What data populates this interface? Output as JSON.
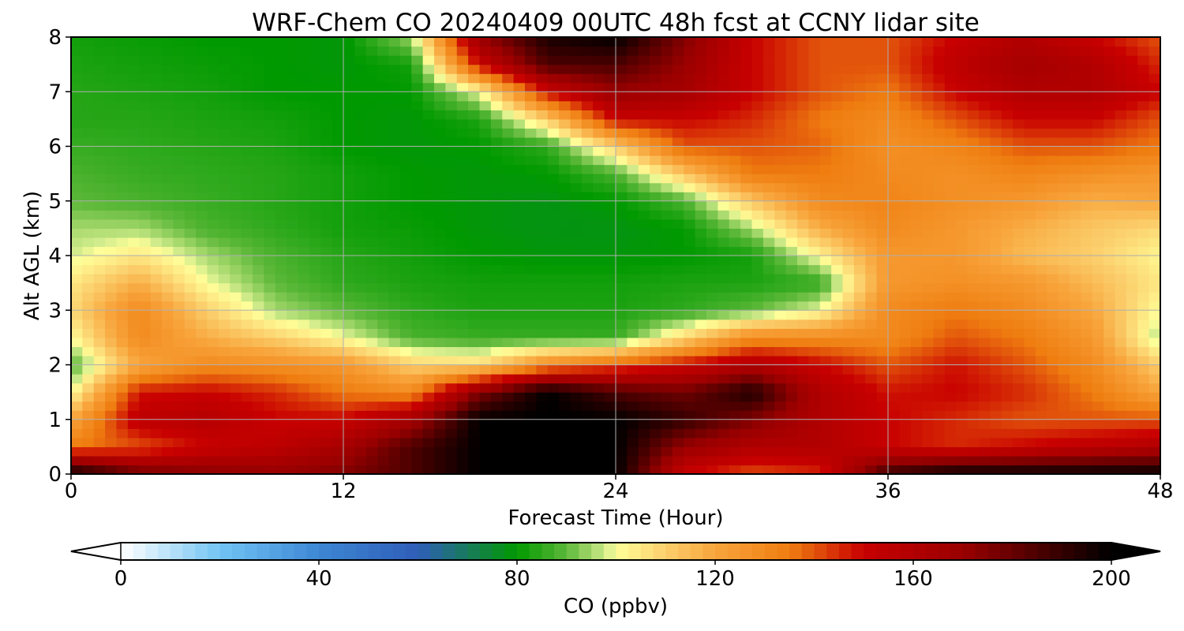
{
  "chart_data": {
    "type": "heatmap",
    "title": "WRF-Chem CO  20240409 00UTC 48h fcst at CCNY lidar site",
    "xlabel": "Forecast Time (Hour)",
    "ylabel": "Alt AGL (km)",
    "xlim": [
      0,
      48
    ],
    "ylim": [
      0,
      8
    ],
    "xticks": [
      0,
      12,
      24,
      36,
      48
    ],
    "yticks": [
      0,
      1,
      2,
      3,
      4,
      5,
      6,
      7,
      8
    ],
    "grid": true,
    "x": [
      0,
      3,
      6,
      9,
      12,
      15,
      18,
      21,
      24,
      27,
      30,
      33,
      36,
      39,
      42,
      45,
      48
    ],
    "y": [
      0,
      0.5,
      1,
      1.5,
      2,
      2.5,
      3,
      3.5,
      4,
      4.5,
      5,
      5.5,
      6,
      6.5,
      7,
      7.5,
      8
    ],
    "z": [
      [
        200,
        180,
        175,
        172,
        175,
        185,
        200,
        200,
        200,
        150,
        140,
        145,
        190,
        200,
        200,
        200,
        200
      ],
      [
        135,
        140,
        150,
        155,
        165,
        185,
        200,
        200,
        200,
        170,
        160,
        160,
        150,
        145,
        150,
        155,
        160
      ],
      [
        120,
        155,
        158,
        150,
        150,
        165,
        200,
        200,
        200,
        190,
        175,
        160,
        150,
        145,
        140,
        140,
        140
      ],
      [
        100,
        148,
        150,
        145,
        135,
        130,
        175,
        200,
        185,
        178,
        195,
        160,
        148,
        150,
        145,
        135,
        120
      ],
      [
        88,
        120,
        130,
        128,
        125,
        110,
        108,
        130,
        140,
        150,
        160,
        150,
        140,
        148,
        140,
        130,
        110
      ],
      [
        100,
        130,
        118,
        110,
        100,
        88,
        86,
        86,
        86,
        108,
        130,
        130,
        130,
        140,
        135,
        125,
        95
      ],
      [
        108,
        130,
        110,
        95,
        90,
        85,
        83,
        83,
        83,
        85,
        90,
        100,
        130,
        135,
        130,
        120,
        100
      ],
      [
        105,
        118,
        100,
        90,
        85,
        83,
        82,
        82,
        82,
        83,
        83,
        85,
        125,
        128,
        125,
        115,
        105
      ],
      [
        98,
        105,
        95,
        88,
        84,
        82,
        80,
        79,
        79,
        80,
        82,
        102,
        125,
        125,
        115,
        110,
        102
      ],
      [
        95,
        95,
        88,
        85,
        82,
        81,
        79,
        78,
        78,
        80,
        95,
        118,
        130,
        125,
        118,
        112,
        108
      ],
      [
        90,
        88,
        86,
        84,
        82,
        80,
        79,
        78,
        80,
        88,
        112,
        130,
        132,
        128,
        125,
        118,
        120
      ],
      [
        88,
        86,
        85,
        84,
        82,
        80,
        79,
        80,
        88,
        112,
        135,
        135,
        130,
        128,
        132,
        128,
        125
      ],
      [
        86,
        85,
        84,
        83,
        80,
        79,
        80,
        85,
        110,
        140,
        140,
        138,
        128,
        132,
        140,
        140,
        135
      ],
      [
        84,
        84,
        83,
        82,
        80,
        79,
        83,
        110,
        150,
        150,
        145,
        135,
        130,
        140,
        150,
        150,
        140
      ],
      [
        84,
        83,
        82,
        80,
        80,
        80,
        100,
        150,
        170,
        165,
        150,
        140,
        135,
        150,
        160,
        160,
        150
      ],
      [
        83,
        82,
        81,
        80,
        79,
        82,
        150,
        185,
        185,
        170,
        150,
        140,
        140,
        155,
        165,
        160,
        145
      ],
      [
        82,
        81,
        80,
        80,
        79,
        95,
        170,
        195,
        200,
        175,
        150,
        140,
        140,
        150,
        160,
        150,
        140
      ]
    ],
    "colorbar": {
      "label": "CO  (ppbv)",
      "ticks": [
        0,
        40,
        80,
        120,
        160,
        200
      ],
      "min": 0,
      "max": 200,
      "extend": "both",
      "colors": {
        "0": "#ffffff",
        "20": "#72c4f4",
        "40": "#3d87d4",
        "60": "#2f5db8",
        "80": "#009900",
        "90": "#5db839",
        "98": "#d2ec8c",
        "100": "#ffff99",
        "110": "#fbcf6c",
        "120": "#f8a53c",
        "135": "#ef7d10",
        "150": "#c80000",
        "170": "#9a0000",
        "185": "#4d0000",
        "200": "#000000"
      }
    }
  }
}
